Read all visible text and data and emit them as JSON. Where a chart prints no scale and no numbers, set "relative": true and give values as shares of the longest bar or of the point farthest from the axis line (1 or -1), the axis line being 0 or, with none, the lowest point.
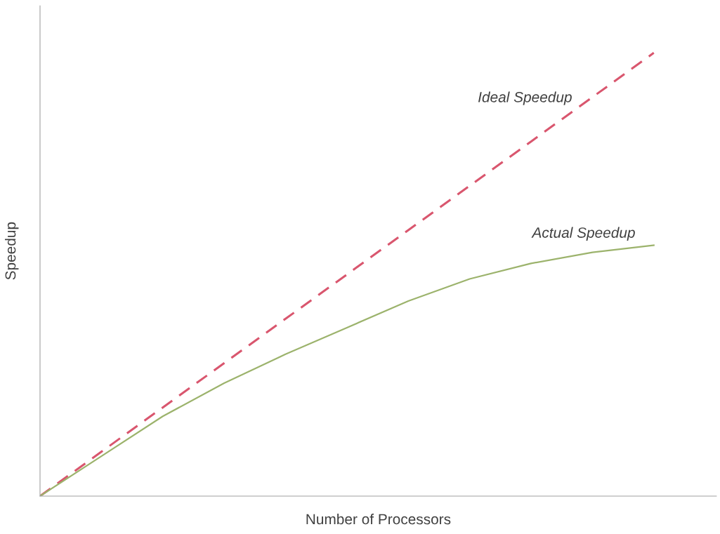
{
  "chart_data": {
    "type": "line",
    "relative": true,
    "xlabel": "Number of Processors",
    "ylabel": "Speedup",
    "categories": [
      null,
      null,
      null,
      null,
      null,
      null,
      null,
      null,
      null,
      null,
      null
    ],
    "series": [
      {
        "name": "Ideal Speedup",
        "color": "#d9566e",
        "line_style": "dashed",
        "values": [
          0,
          0.1,
          0.2,
          0.3,
          0.4,
          0.5,
          0.6,
          0.7,
          0.8,
          0.9,
          1
        ]
      },
      {
        "name": "Actual Speedup",
        "color": "#9cb36c",
        "line_style": "solid",
        "values": [
          0,
          0.09,
          0.18,
          0.255,
          0.32,
          0.38,
          0.44,
          0.49,
          0.525,
          0.55,
          0.566
        ]
      }
    ]
  }
}
